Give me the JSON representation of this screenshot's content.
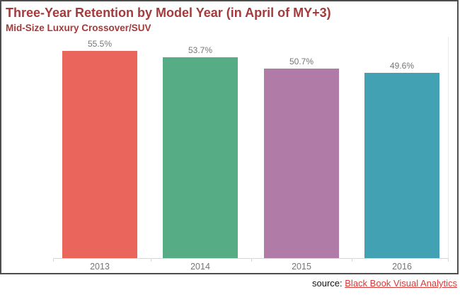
{
  "header": {
    "title": "Three-Year Retention by Model Year (in April of MY+3)",
    "subtitle": "Mid-Size Luxury Crossover/SUV",
    "title_color": "#a33b3c"
  },
  "source": {
    "prefix": "source: ",
    "link_text": "Black Book Visual Analytics",
    "link_color": "#d93a38"
  },
  "chart_data": {
    "type": "bar",
    "title": "Three-Year Retention by Model Year (in April of MY+3)",
    "subtitle": "Mid-Size Luxury Crossover/SUV",
    "categories": [
      "2013",
      "2014",
      "2015",
      "2016"
    ],
    "values": [
      55.5,
      53.7,
      50.7,
      49.6
    ],
    "value_labels": [
      "55.5%",
      "53.7%",
      "50.7%",
      "49.6%"
    ],
    "bar_colors": [
      "#ea655b",
      "#56ac85",
      "#b07ba6",
      "#42a1b2"
    ],
    "xlabel": "",
    "ylabel": "",
    "ylim": [
      0,
      59
    ],
    "grid": false,
    "legend": "none",
    "label_color": "#757575",
    "axis_color": "#d8d8d8"
  }
}
